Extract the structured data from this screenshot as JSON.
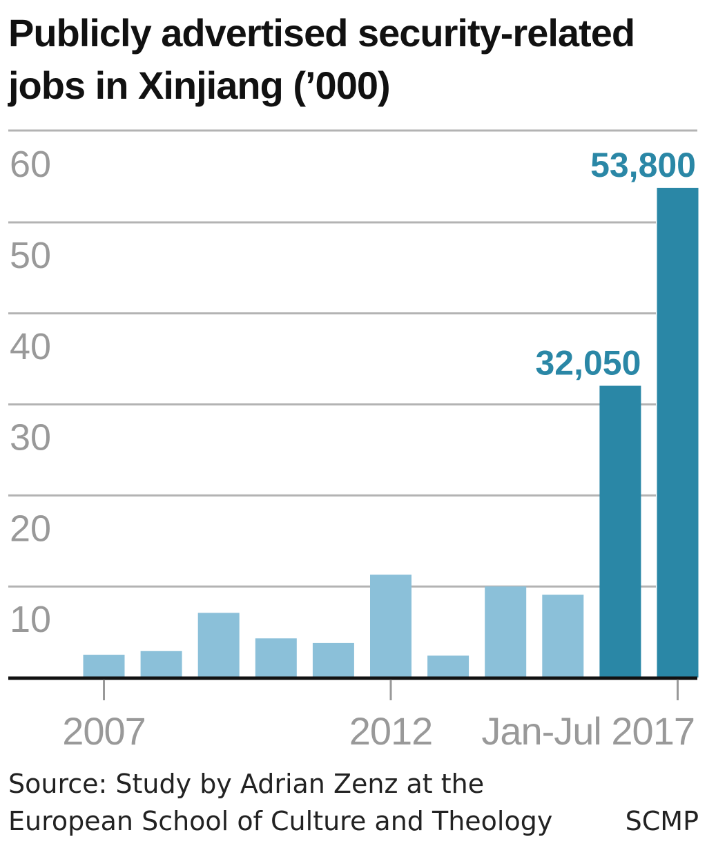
{
  "title": "Publicly advertised security-related jobs in Xinjiang (’000)",
  "source": {
    "line1": "Source: Study by Adrian Zenz at the",
    "line2": "European School of Culture and Theology",
    "credit": "SCMP"
  },
  "colors": {
    "bar_light": "#8bc0d9",
    "bar_dark": "#2a87a6",
    "label_dark": "#2a87a6",
    "grid": "#b3b3b3",
    "tick_text": "#999999",
    "axis": "#111111"
  },
  "chart_data": {
    "type": "bar",
    "title": "Publicly advertised security-related jobs in Xinjiang (’000)",
    "xlabel": "",
    "ylabel": "",
    "ylim": [
      0,
      60
    ],
    "yticks": [
      10,
      20,
      30,
      40,
      50,
      60
    ],
    "grid": true,
    "categories": [
      "2007",
      "2008",
      "2009",
      "2010",
      "2011",
      "2012",
      "2013",
      "2014",
      "2015",
      "2016",
      "Jan-Jul 2017"
    ],
    "x_tick_labels": [
      {
        "category": "2007",
        "label": "2007"
      },
      {
        "category": "2012",
        "label": "2012"
      },
      {
        "category": "Jan-Jul 2017",
        "label": "Jan-Jul 2017"
      }
    ],
    "values": [
      2.5,
      2.9,
      7.1,
      4.3,
      3.8,
      11.3,
      2.4,
      10.0,
      9.1,
      32.05,
      53.8
    ],
    "highlighted": [
      false,
      false,
      false,
      false,
      false,
      false,
      false,
      false,
      false,
      true,
      true
    ],
    "data_labels": [
      {
        "category": "2016",
        "label": "32,050"
      },
      {
        "category": "Jan-Jul 2017",
        "label": "53,800"
      }
    ]
  }
}
